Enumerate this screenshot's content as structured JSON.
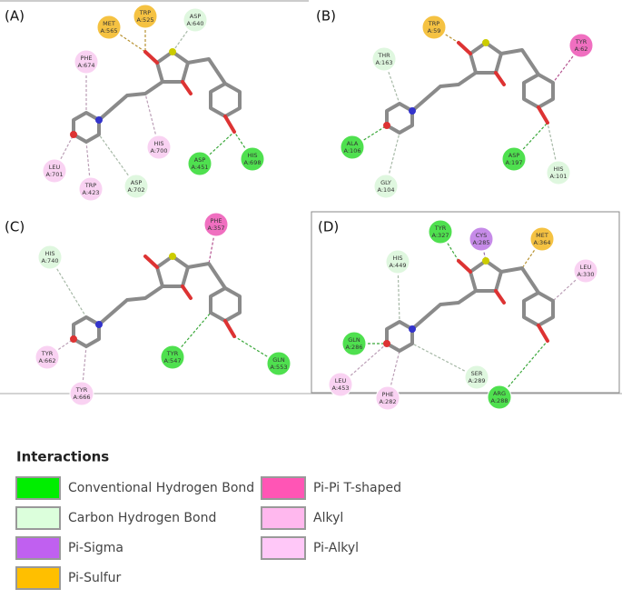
{
  "panels": [
    {
      "label": "(A)",
      "residues": [
        {
          "name": "MET",
          "id": "A:565",
          "color": "#f5c242"
        },
        {
          "name": "TRP",
          "id": "A:525",
          "color": "#f5c242"
        },
        {
          "name": "ASP",
          "id": "A:640",
          "color": "#dff7df"
        },
        {
          "name": "PHE",
          "id": "A:674",
          "color": "#f9d2f2"
        },
        {
          "name": "HIS",
          "id": "A:700",
          "color": "#f9d2f2"
        },
        {
          "name": "ASP",
          "id": "A:451",
          "color": "#4fe04f"
        },
        {
          "name": "HIS",
          "id": "A:698",
          "color": "#4fe04f"
        },
        {
          "name": "LEU",
          "id": "A:701",
          "color": "#f9d2f2"
        },
        {
          "name": "TRP",
          "id": "A:423",
          "color": "#f9d2f2"
        },
        {
          "name": "ASP",
          "id": "A:702",
          "color": "#dff7df"
        }
      ]
    },
    {
      "label": "(B)",
      "residues": [
        {
          "name": "TRP",
          "id": "A:59",
          "color": "#f5c242"
        },
        {
          "name": "TYR",
          "id": "A:62",
          "color": "#f06fc0"
        },
        {
          "name": "THR",
          "id": "A:163",
          "color": "#dff7df"
        },
        {
          "name": "ALA",
          "id": "A:106",
          "color": "#4fe04f"
        },
        {
          "name": "ASP",
          "id": "A:197",
          "color": "#4fe04f"
        },
        {
          "name": "GLY",
          "id": "A:104",
          "color": "#dff7df"
        },
        {
          "name": "HIS",
          "id": "A:101",
          "color": "#dff7df"
        }
      ]
    },
    {
      "label": "(C)",
      "residues": [
        {
          "name": "PHE",
          "id": "A:357",
          "color": "#f06fc0"
        },
        {
          "name": "HIS",
          "id": "A:740",
          "color": "#dff7df"
        },
        {
          "name": "TYR",
          "id": "A:662",
          "color": "#f9d2f2"
        },
        {
          "name": "TYR",
          "id": "A:547",
          "color": "#4fe04f"
        },
        {
          "name": "GLN",
          "id": "A:553",
          "color": "#4fe04f"
        },
        {
          "name": "TYR",
          "id": "A:666",
          "color": "#f9d2f2"
        }
      ]
    },
    {
      "label": "(D)",
      "residues": [
        {
          "name": "TYR",
          "id": "A:327",
          "color": "#4fe04f"
        },
        {
          "name": "CYS",
          "id": "A:285",
          "color": "#c68be8"
        },
        {
          "name": "MET",
          "id": "A:364",
          "color": "#f5c242"
        },
        {
          "name": "HIS",
          "id": "A:449",
          "color": "#dff7df"
        },
        {
          "name": "LEU",
          "id": "A:330",
          "color": "#f9d2f2"
        },
        {
          "name": "GLN",
          "id": "A:286",
          "color": "#4fe04f"
        },
        {
          "name": "SER",
          "id": "A:289",
          "color": "#dff7df"
        },
        {
          "name": "ARG",
          "id": "A:288",
          "color": "#4fe04f"
        },
        {
          "name": "LEU",
          "id": "A:453",
          "color": "#f9d2f2"
        },
        {
          "name": "PHE",
          "id": "A:282",
          "color": "#f9d2f2"
        }
      ]
    }
  ],
  "legend": {
    "title": "Interactions",
    "items": [
      {
        "label": "Conventional Hydrogen Bond",
        "color": "#00ee00"
      },
      {
        "label": "Carbon Hydrogen Bond",
        "color": "#dcffdc"
      },
      {
        "label": "Pi-Sigma",
        "color": "#c060f0"
      },
      {
        "label": "Pi-Sulfur",
        "color": "#ffbf00"
      },
      {
        "label": "Pi-Pi T-shaped",
        "color": "#ff55b5"
      },
      {
        "label": "Alkyl",
        "color": "#ffb8ee"
      },
      {
        "label": "Pi-Alkyl",
        "color": "#ffc8f8"
      }
    ]
  }
}
